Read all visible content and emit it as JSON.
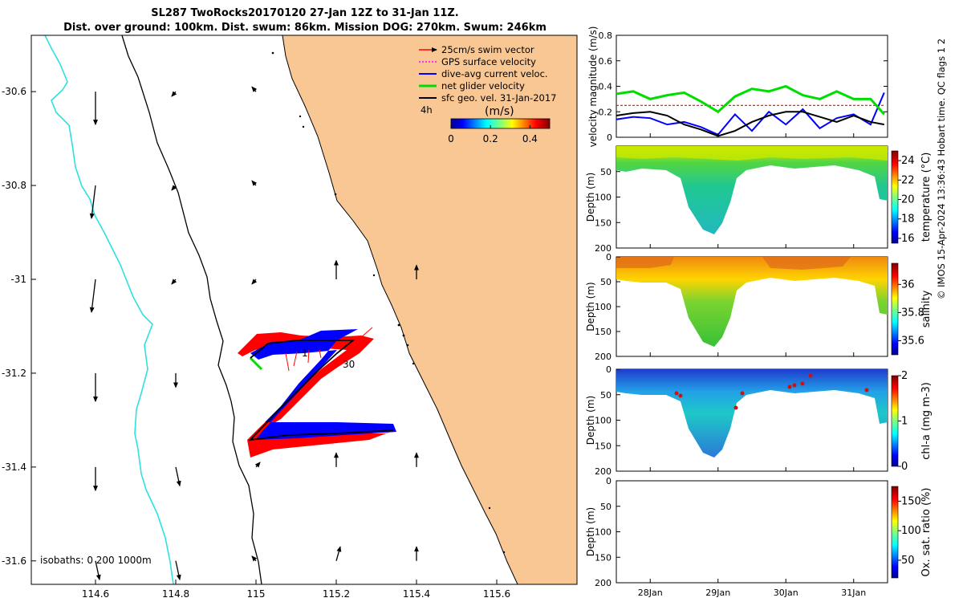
{
  "title": {
    "line1": "SL287 TwoRocks20170120 27-Jan 12Z to 31-Jan 11Z.",
    "line2": "Dist. over ground: 100km. Dist. swum: 86km. Mission DOG: 270km. Swum: 246km"
  },
  "colors": {
    "land": "#f9c794",
    "isobath_0": "#000000",
    "isobath_200": "#000000",
    "isobath_1000": "#2ee0e0",
    "swim": "#ff0000",
    "gps": "#ff00ff",
    "dive_avg": "#0000ff",
    "net": "#00dd00",
    "sfc": "#000000"
  },
  "chart_data": [
    {
      "type": "map",
      "xlim": [
        114.44,
        115.8
      ],
      "ylim": [
        -31.65,
        -30.48
      ],
      "xticks": [
        "114.6",
        "114.8",
        "115",
        "115.2",
        "115.4",
        "115.6"
      ],
      "yticks": [
        "-30.6",
        "-30.8",
        "-31",
        "-31.2",
        "-31.4",
        "-31.6"
      ],
      "legend": {
        "position": "top-right",
        "entries": [
          "25cm/s swim vector",
          "GPS surface velocity",
          "dive-avg current veloc.",
          "net glider velocity",
          "sfc geo. vel. 31-Jan-2017"
        ],
        "interval_label": "4h"
      },
      "speed_colorbar": {
        "label": "(m/s)",
        "ticks": [
          "0",
          "0.2",
          "0.4"
        ],
        "range": [
          0,
          0.5
        ]
      },
      "isobaths_label": "isobaths: 0   200  1000m",
      "track_labels": [
        "1",
        "30"
      ],
      "track": [
        [
          115.0,
          -31.17
        ],
        [
          115.25,
          -31.13
        ],
        [
          115.0,
          -31.36
        ],
        [
          115.35,
          -31.33
        ]
      ],
      "surface_currents": [
        [
          114.6,
          -30.6,
          0.0,
          -0.07
        ],
        [
          114.6,
          -30.8,
          -0.01,
          -0.07
        ],
        [
          114.6,
          -31.0,
          -0.01,
          -0.07
        ],
        [
          114.6,
          -31.2,
          0.0,
          -0.06
        ],
        [
          114.6,
          -31.4,
          0.0,
          -0.05
        ],
        [
          114.6,
          -31.6,
          0.01,
          -0.04
        ],
        [
          114.8,
          -30.6,
          -0.01,
          -0.01
        ],
        [
          114.8,
          -30.8,
          -0.01,
          -0.01
        ],
        [
          114.8,
          -31.0,
          -0.01,
          -0.01
        ],
        [
          114.8,
          -31.2,
          0.0,
          -0.03
        ],
        [
          114.8,
          -31.4,
          0.01,
          -0.04
        ],
        [
          114.8,
          -31.6,
          0.01,
          -0.04
        ],
        [
          115.0,
          -30.6,
          -0.01,
          0.01
        ],
        [
          115.0,
          -30.8,
          -0.01,
          0.01
        ],
        [
          115.0,
          -31.0,
          -0.01,
          -0.01
        ],
        [
          115.0,
          -31.4,
          0.01,
          0.01
        ],
        [
          115.0,
          -31.6,
          -0.01,
          0.01
        ],
        [
          115.2,
          -31.0,
          0.0,
          0.04
        ],
        [
          115.2,
          -31.4,
          0.0,
          0.03
        ],
        [
          115.2,
          -31.6,
          0.01,
          0.03
        ],
        [
          115.4,
          -31.0,
          0.0,
          0.03
        ],
        [
          115.4,
          -31.4,
          0.0,
          0.03
        ],
        [
          115.4,
          -31.6,
          0.0,
          0.03
        ]
      ]
    },
    {
      "type": "line",
      "ylabel": "velocity magnitude (m/s)",
      "ylim": [
        0,
        0.8
      ],
      "yticks": [
        "0",
        "0.2",
        "0.4",
        "0.6",
        "0.8"
      ],
      "x": [
        27.5,
        27.75,
        28.0,
        28.25,
        28.5,
        28.75,
        29.0,
        29.25,
        29.5,
        29.75,
        30.0,
        30.25,
        30.5,
        30.75,
        31.0,
        31.25,
        31.45
      ],
      "series": [
        {
          "name": "swim vector",
          "values": [
            0.25,
            0.25,
            0.25,
            0.25,
            0.25,
            0.25,
            0.25,
            0.25,
            0.25,
            0.25,
            0.25,
            0.25,
            0.25,
            0.25,
            0.25,
            0.25,
            0.25
          ]
        },
        {
          "name": "dive-avg current",
          "values": [
            0.14,
            0.16,
            0.15,
            0.1,
            0.12,
            0.08,
            0.02,
            0.18,
            0.05,
            0.2,
            0.1,
            0.22,
            0.07,
            0.15,
            0.18,
            0.1,
            0.35
          ]
        },
        {
          "name": "net glider velocity",
          "values": [
            0.34,
            0.36,
            0.3,
            0.33,
            0.35,
            0.28,
            0.2,
            0.32,
            0.38,
            0.36,
            0.4,
            0.33,
            0.3,
            0.36,
            0.3,
            0.3,
            0.18
          ]
        },
        {
          "name": "sfc geo. vel.",
          "values": [
            0.17,
            0.19,
            0.2,
            0.17,
            0.1,
            0.06,
            0.01,
            0.05,
            0.12,
            0.17,
            0.2,
            0.2,
            0.16,
            0.12,
            0.17,
            0.12,
            0.1
          ]
        }
      ]
    },
    {
      "type": "heatmap",
      "ylabel": "Depth (m)",
      "clabel": "temperature (°C)",
      "ylim": [
        200,
        0
      ],
      "yticks": [
        "50",
        "100",
        "150",
        "200"
      ],
      "cticks": [
        "16",
        "18",
        "20",
        "22",
        "24"
      ],
      "crange": [
        15.5,
        25
      ]
    },
    {
      "type": "heatmap",
      "ylabel": "Depth (m)",
      "clabel": "salinity",
      "ylim": [
        200,
        0
      ],
      "yticks": [
        "0",
        "50",
        "100",
        "150",
        "200"
      ],
      "cticks": [
        "35.6",
        "35.8",
        "36"
      ],
      "crange": [
        35.5,
        36.15
      ]
    },
    {
      "type": "heatmap",
      "ylabel": "Depth (m)",
      "clabel": "chl-a (mg m-3)",
      "ylim": [
        200,
        0
      ],
      "yticks": [
        "0",
        "50",
        "100",
        "150",
        "200"
      ],
      "cticks": [
        "0",
        "1",
        "2"
      ],
      "crange": [
        0,
        2
      ]
    },
    {
      "type": "heatmap",
      "ylabel": "Depth (m)",
      "clabel": "Ox. sat. ratio (%)",
      "ylim": [
        200,
        0
      ],
      "yticks": [
        "0",
        "50",
        "100",
        "150",
        "200"
      ],
      "cticks": [
        "50",
        "100",
        "150"
      ],
      "crange": [
        20,
        175
      ],
      "xticks": [
        "28Jan",
        "29Jan",
        "30Jan",
        "31Jan"
      ]
    }
  ],
  "credit": "© IMOS 15-Apr-2024 13:36:43 Hobart time. QC flags 1  2"
}
